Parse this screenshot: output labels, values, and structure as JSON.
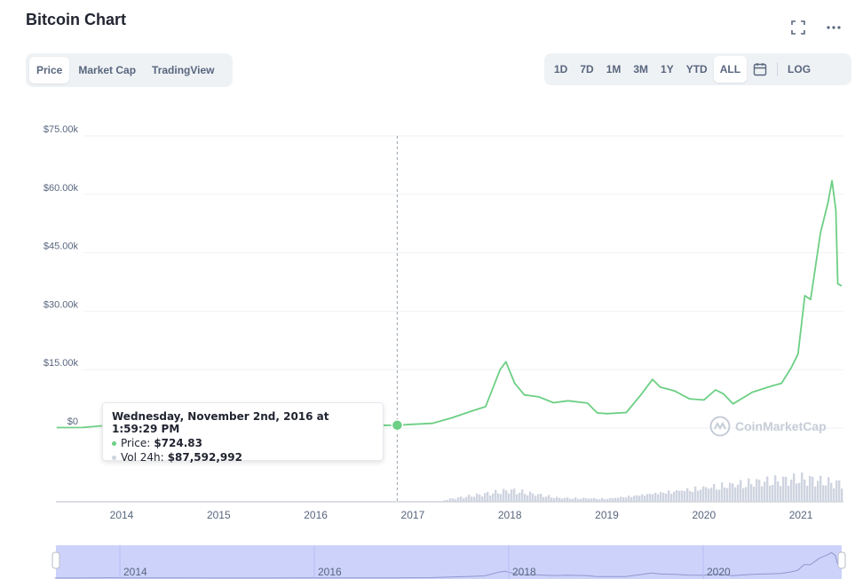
{
  "header": {
    "title": "Bitcoin Chart"
  },
  "tabs": [
    {
      "label": "Price",
      "active": true
    },
    {
      "label": "Market Cap",
      "active": false
    },
    {
      "label": "TradingView",
      "active": false
    }
  ],
  "ranges": [
    {
      "label": "1D",
      "active": false
    },
    {
      "label": "7D",
      "active": false
    },
    {
      "label": "1M",
      "active": false
    },
    {
      "label": "3M",
      "active": false
    },
    {
      "label": "1Y",
      "active": false
    },
    {
      "label": "YTD",
      "active": false
    },
    {
      "label": "ALL",
      "active": true
    }
  ],
  "scale_toggle": "LOG",
  "tooltip": {
    "date": "Wednesday, November 2nd, 2016 at 1:59:29 PM",
    "price_label": "Price:",
    "price_value": "$724.83",
    "volume_label": "Vol 24h:",
    "volume_value": "$87,592,992"
  },
  "watermark": "CoinMarketCap",
  "colors": {
    "line": "#6ccf84",
    "volume": "#cfd4e0",
    "navigator": "#cdd2fb",
    "grid": "#eff2f5",
    "text_muted": "#58667e"
  },
  "chart_data": {
    "type": "line",
    "y_ticks": [
      "$75.00k",
      "$60.00k",
      "$45.00k",
      "$30.00k",
      "$15.00k",
      "$0"
    ],
    "x_ticks": [
      "2014",
      "2015",
      "2016",
      "2017",
      "2018",
      "2019",
      "2020",
      "2021"
    ],
    "navigator_ticks": [
      "2014",
      "2016",
      "2018",
      "2020"
    ],
    "ylim": [
      0,
      75000
    ],
    "hover_year": 2016.84,
    "series": [
      {
        "name": "Price",
        "x": [
          2013.33,
          2013.6,
          2013.9,
          2014.0,
          2014.5,
          2015.0,
          2015.5,
          2016.0,
          2016.5,
          2016.84,
          2017.0,
          2017.2,
          2017.4,
          2017.6,
          2017.75,
          2017.9,
          2017.96,
          2018.05,
          2018.15,
          2018.3,
          2018.45,
          2018.6,
          2018.8,
          2018.9,
          2019.0,
          2019.2,
          2019.35,
          2019.47,
          2019.55,
          2019.7,
          2019.85,
          2020.0,
          2020.12,
          2020.2,
          2020.3,
          2020.5,
          2020.7,
          2020.8,
          2020.9,
          2020.97,
          2021.04,
          2021.1,
          2021.2,
          2021.28,
          2021.32,
          2021.36,
          2021.38,
          2021.42
        ],
        "y": [
          120,
          130,
          800,
          750,
          600,
          300,
          250,
          430,
          650,
          725,
          950,
          1200,
          2600,
          4300,
          5500,
          15000,
          17000,
          11500,
          8500,
          8000,
          6500,
          7000,
          6400,
          3900,
          3700,
          4000,
          8500,
          12500,
          10500,
          9500,
          7500,
          7200,
          9800,
          8800,
          6200,
          9200,
          10800,
          11500,
          15500,
          19000,
          34000,
          33000,
          50000,
          58000,
          63500,
          56000,
          37000,
          36500
        ]
      },
      {
        "name": "Vol 24h",
        "x": [
          2017.3,
          2018.0,
          2018.5,
          2019.0,
          2019.5,
          2020.0,
          2020.5,
          2021.0,
          2021.35
        ],
        "y": [
          0.05,
          0.35,
          0.12,
          0.1,
          0.28,
          0.45,
          0.6,
          0.7,
          0.55
        ]
      }
    ]
  }
}
